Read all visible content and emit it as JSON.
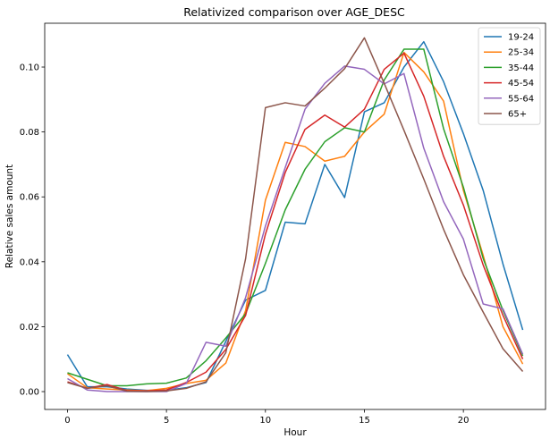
{
  "chart_data": {
    "type": "line",
    "title": "Relativized comparison over AGE_DESC",
    "xlabel": "Hour",
    "ylabel": "Relative sales amount",
    "xlim": [
      -1.15,
      24.15
    ],
    "ylim": [
      -0.0055,
      0.1135
    ],
    "xticks": [
      0,
      5,
      10,
      15,
      20
    ],
    "xtick_labels": [
      "0",
      "5",
      "10",
      "15",
      "20"
    ],
    "yticks": [
      0.0,
      0.02,
      0.04,
      0.06,
      0.08,
      0.1
    ],
    "ytick_labels": [
      "0.00",
      "0.02",
      "0.04",
      "0.06",
      "0.08",
      "0.10"
    ],
    "grid": false,
    "legend_position": "upper right",
    "x": [
      0,
      1,
      2,
      3,
      4,
      5,
      6,
      7,
      8,
      9,
      10,
      11,
      12,
      13,
      14,
      15,
      16,
      17,
      18,
      19,
      20,
      21,
      22,
      23
    ],
    "series": [
      {
        "name": "19-24",
        "color": "#1f77b4",
        "values": [
          0.0114,
          0.0015,
          0.0015,
          0.0008,
          0.0004,
          0.0004,
          0.0012,
          0.0028,
          0.0155,
          0.0282,
          0.0312,
          0.0522,
          0.0517,
          0.07,
          0.0598,
          0.0862,
          0.089,
          0.1,
          0.1078,
          0.0955,
          0.0795,
          0.062,
          0.0393,
          0.019
        ]
      },
      {
        "name": "25-34",
        "color": "#ff7f0e",
        "values": [
          0.0055,
          0.0012,
          0.0008,
          0.0005,
          0.0003,
          0.001,
          0.0025,
          0.0035,
          0.0088,
          0.025,
          0.059,
          0.0768,
          0.0755,
          0.071,
          0.0725,
          0.08,
          0.0855,
          0.1045,
          0.0985,
          0.0895,
          0.062,
          0.042,
          0.02,
          0.0085
        ]
      },
      {
        "name": "35-44",
        "color": "#2ca02c",
        "values": [
          0.0058,
          0.0038,
          0.0018,
          0.0018,
          0.0024,
          0.0026,
          0.0042,
          0.0095,
          0.0165,
          0.024,
          0.0395,
          0.056,
          0.0685,
          0.077,
          0.0813,
          0.08,
          0.096,
          0.1055,
          0.1055,
          0.081,
          0.063,
          0.041,
          0.025,
          0.011
        ]
      },
      {
        "name": "45-54",
        "color": "#d62728",
        "values": [
          0.003,
          0.001,
          0.0022,
          0.0003,
          0.0002,
          0.0005,
          0.0028,
          0.006,
          0.013,
          0.0235,
          0.0485,
          0.0675,
          0.0808,
          0.0852,
          0.0815,
          0.087,
          0.0993,
          0.1043,
          0.091,
          0.0725,
          0.0575,
          0.039,
          0.0235,
          0.01
        ]
      },
      {
        "name": "55-64",
        "color": "#9467bd",
        "values": [
          0.004,
          0.0005,
          0.0,
          0.0,
          0.0,
          0.0,
          0.0025,
          0.0152,
          0.014,
          0.029,
          0.051,
          0.069,
          0.087,
          0.095,
          0.1003,
          0.0993,
          0.0948,
          0.098,
          0.075,
          0.0585,
          0.047,
          0.027,
          0.0255,
          0.0115
        ]
      },
      {
        "name": "65+",
        "color": "#8c564b",
        "values": [
          0.0028,
          0.001,
          0.0018,
          0.0001,
          0.0,
          0.0002,
          0.001,
          0.003,
          0.012,
          0.041,
          0.0875,
          0.089,
          0.088,
          0.0935,
          0.0995,
          0.109,
          0.095,
          0.0805,
          0.0655,
          0.05,
          0.036,
          0.0245,
          0.0132,
          0.0062
        ]
      }
    ]
  }
}
